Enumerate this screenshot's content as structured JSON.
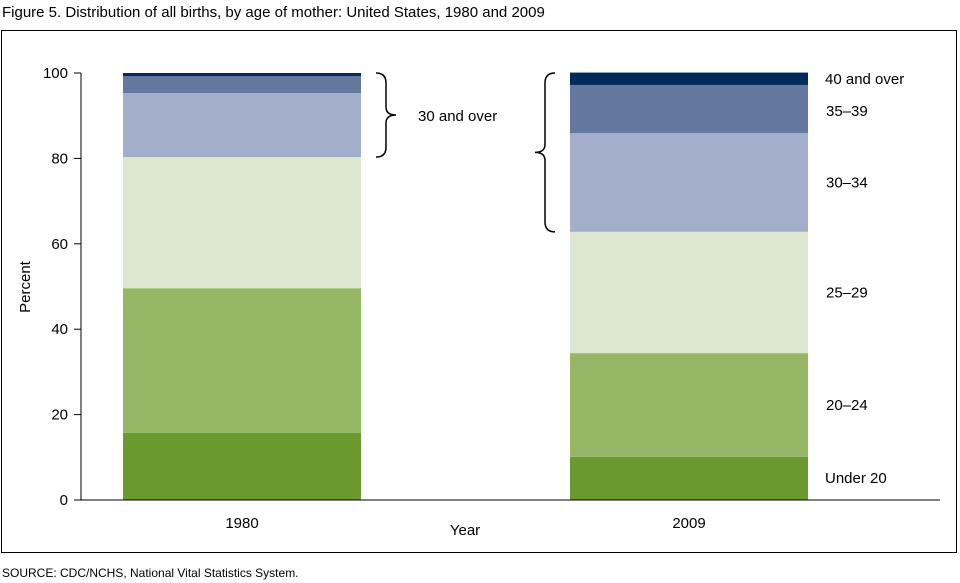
{
  "chart_data": {
    "type": "bar",
    "stacked": true,
    "title": "Figure 5. Distribution of all births, by age of mother: United States, 1980 and 2009",
    "xlabel": "Year",
    "ylabel": "Percent",
    "ylim": [
      0,
      100
    ],
    "yticks": [
      0,
      20,
      40,
      60,
      80,
      100
    ],
    "categories": [
      "1980",
      "2009"
    ],
    "series": [
      {
        "name": "Under 20",
        "color": "#6a9a2e",
        "values": [
          15.7,
          10.1
        ]
      },
      {
        "name": "20–24",
        "color": "#95b766",
        "values": [
          33.9,
          24.3
        ]
      },
      {
        "name": "25–29",
        "color": "#dde6cf",
        "values": [
          30.7,
          28.4
        ]
      },
      {
        "name": "30–34",
        "color": "#a3aeca",
        "values": [
          15.0,
          23.1
        ]
      },
      {
        "name": "35–39",
        "color": "#63779f",
        "values": [
          4.0,
          11.3
        ]
      },
      {
        "name": "40 and over",
        "color": "#012a5c",
        "values": [
          0.7,
          2.9
        ]
      }
    ],
    "annotation": "30 and over",
    "source": "SOURCE: CDC/NCHS, National Vital Statistics System."
  }
}
